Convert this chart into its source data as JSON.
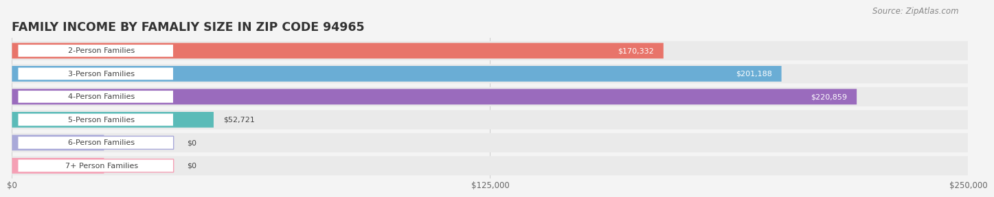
{
  "title": "FAMILY INCOME BY FAMALIY SIZE IN ZIP CODE 94965",
  "source": "Source: ZipAtlas.com",
  "categories": [
    "2-Person Families",
    "3-Person Families",
    "4-Person Families",
    "5-Person Families",
    "6-Person Families",
    "7+ Person Families"
  ],
  "values": [
    170332,
    201188,
    220859,
    52721,
    0,
    0
  ],
  "bar_colors": [
    "#E8746A",
    "#6AADD5",
    "#9A6BBD",
    "#5BBBB8",
    "#A9A9D9",
    "#F5A0B5"
  ],
  "value_labels": [
    "$170,332",
    "$201,188",
    "$220,859",
    "$52,721",
    "$0",
    "$0"
  ],
  "value_inside": [
    true,
    true,
    true,
    false,
    false,
    false
  ],
  "xlim": [
    0,
    250000
  ],
  "xticks": [
    0,
    125000,
    250000
  ],
  "xtick_labels": [
    "$0",
    "$125,000",
    "$250,000"
  ],
  "bg_color": "#F4F4F4",
  "row_bg_color": "#EAEAEA",
  "title_fontsize": 12.5,
  "source_fontsize": 8.5,
  "tick_fontsize": 8.5,
  "label_fontsize": 8,
  "value_fontsize": 8
}
